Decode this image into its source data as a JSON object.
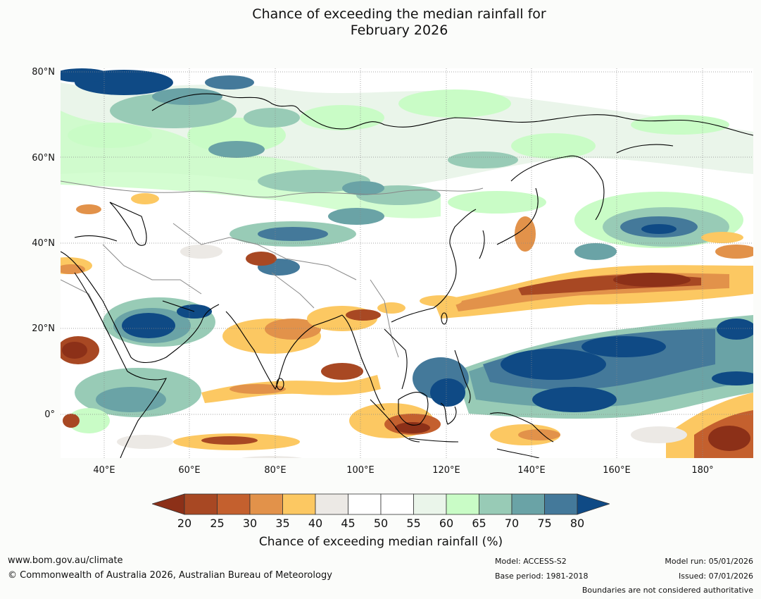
{
  "title_line1": "Chance of exceeding the median rainfall for",
  "title_line2": "February 2026",
  "lat_labels": [
    "80°N",
    "60°N",
    "40°N",
    "20°N",
    "0°"
  ],
  "lon_labels": [
    "40°E",
    "60°E",
    "80°E",
    "100°E",
    "120°E",
    "140°E",
    "160°E",
    "180°"
  ],
  "colorbar": {
    "ticks": [
      "20",
      "25",
      "30",
      "35",
      "40",
      "45",
      "50",
      "55",
      "60",
      "65",
      "70",
      "75",
      "80"
    ],
    "label": "Chance of exceeding median rainfall (%)",
    "low_extend_color": "#8c3018",
    "high_extend_color": "#0f4a85",
    "bins": [
      {
        "range": "20-25",
        "color": "#a84823"
      },
      {
        "range": "25-30",
        "color": "#c4602e"
      },
      {
        "range": "30-35",
        "color": "#e2924a"
      },
      {
        "range": "35-40",
        "color": "#fcc862"
      },
      {
        "range": "40-45",
        "color": "#ece9e5"
      },
      {
        "range": "45-50",
        "color": "#ffffff"
      },
      {
        "range": "50-55",
        "color": "#ffffff"
      },
      {
        "range": "55-60",
        "color": "#eaf5ea"
      },
      {
        "range": "60-65",
        "color": "#c9fcc6"
      },
      {
        "range": "65-70",
        "color": "#98cbb6"
      },
      {
        "range": "70-75",
        "color": "#6aa3a6"
      },
      {
        "range": "75-80",
        "color": "#44799a"
      }
    ]
  },
  "footer": {
    "website": "www.bom.gov.au/climate",
    "copyright": "© Commonwealth of Australia 2026, Australian Bureau of Meteorology",
    "model": "Model: ACCESS-S2",
    "base_period": "Base period: 1981-2018",
    "model_run": "Model run: 05/01/2026",
    "issued": "Issued: 07/01/2026",
    "boundaries_note": "Boundaries are not considered authoritative"
  }
}
